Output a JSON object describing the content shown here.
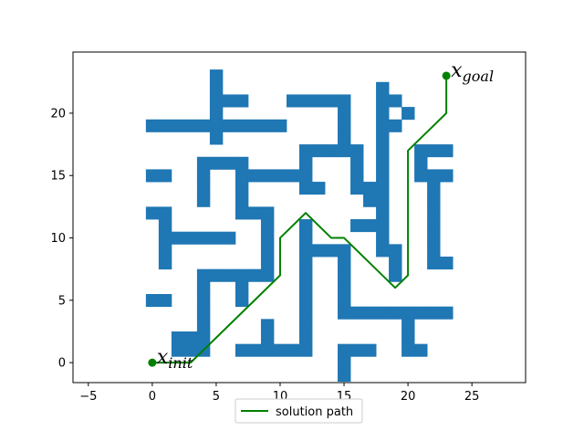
{
  "chart_data": {
    "type": "line",
    "title": "",
    "xlabel": "",
    "ylabel": "",
    "xlim": [
      -6.2,
      29.2
    ],
    "ylim": [
      -1.6,
      24.9
    ],
    "x_ticks": [
      -5,
      0,
      5,
      10,
      15,
      20,
      25
    ],
    "y_ticks": [
      0,
      5,
      10,
      15,
      20
    ],
    "grid": false,
    "legend_position": "bottom-center",
    "obstacle_color": "#1f77b4",
    "path_color": "#008000",
    "obstacle_cells": [
      [
        5,
        23
      ],
      [
        5,
        22
      ],
      [
        5,
        21
      ],
      [
        6,
        21
      ],
      [
        7,
        21
      ],
      [
        11,
        21
      ],
      [
        12,
        21
      ],
      [
        13,
        21
      ],
      [
        14,
        21
      ],
      [
        15,
        21
      ],
      [
        18,
        22
      ],
      [
        5,
        20
      ],
      [
        15,
        20
      ],
      [
        18,
        21
      ],
      [
        19,
        21
      ],
      [
        18,
        20
      ],
      [
        20,
        20
      ],
      [
        0,
        19
      ],
      [
        1,
        19
      ],
      [
        2,
        19
      ],
      [
        3,
        19
      ],
      [
        4,
        19
      ],
      [
        5,
        19
      ],
      [
        6,
        19
      ],
      [
        7,
        19
      ],
      [
        8,
        19
      ],
      [
        9,
        19
      ],
      [
        10,
        19
      ],
      [
        15,
        19
      ],
      [
        18,
        19
      ],
      [
        19,
        19
      ],
      [
        5,
        18
      ],
      [
        15,
        18
      ],
      [
        18,
        18
      ],
      [
        12,
        17
      ],
      [
        13,
        17
      ],
      [
        14,
        17
      ],
      [
        15,
        17
      ],
      [
        16,
        17
      ],
      [
        18,
        17
      ],
      [
        21,
        17
      ],
      [
        22,
        17
      ],
      [
        23,
        17
      ],
      [
        4,
        16
      ],
      [
        5,
        16
      ],
      [
        6,
        16
      ],
      [
        7,
        16
      ],
      [
        12,
        16
      ],
      [
        16,
        16
      ],
      [
        18,
        16
      ],
      [
        21,
        16
      ],
      [
        0,
        15
      ],
      [
        1,
        15
      ],
      [
        4,
        15
      ],
      [
        7,
        15
      ],
      [
        8,
        15
      ],
      [
        9,
        15
      ],
      [
        10,
        15
      ],
      [
        11,
        15
      ],
      [
        12,
        15
      ],
      [
        16,
        15
      ],
      [
        18,
        15
      ],
      [
        21,
        15
      ],
      [
        22,
        15
      ],
      [
        23,
        15
      ],
      [
        4,
        14
      ],
      [
        7,
        14
      ],
      [
        12,
        14
      ],
      [
        13,
        14
      ],
      [
        16,
        14
      ],
      [
        17,
        14
      ],
      [
        18,
        14
      ],
      [
        22,
        14
      ],
      [
        4,
        13
      ],
      [
        7,
        13
      ],
      [
        17,
        13
      ],
      [
        18,
        13
      ],
      [
        22,
        13
      ],
      [
        0,
        12
      ],
      [
        1,
        12
      ],
      [
        7,
        12
      ],
      [
        8,
        12
      ],
      [
        9,
        12
      ],
      [
        18,
        12
      ],
      [
        22,
        12
      ],
      [
        1,
        11
      ],
      [
        9,
        11
      ],
      [
        12,
        11
      ],
      [
        16,
        11
      ],
      [
        17,
        11
      ],
      [
        18,
        11
      ],
      [
        22,
        11
      ],
      [
        1,
        10
      ],
      [
        2,
        10
      ],
      [
        3,
        10
      ],
      [
        4,
        10
      ],
      [
        5,
        10
      ],
      [
        6,
        10
      ],
      [
        9,
        10
      ],
      [
        12,
        10
      ],
      [
        18,
        10
      ],
      [
        22,
        10
      ],
      [
        1,
        9
      ],
      [
        9,
        9
      ],
      [
        12,
        9
      ],
      [
        13,
        9
      ],
      [
        14,
        9
      ],
      [
        15,
        9
      ],
      [
        18,
        9
      ],
      [
        19,
        9
      ],
      [
        22,
        9
      ],
      [
        1,
        8
      ],
      [
        9,
        8
      ],
      [
        12,
        8
      ],
      [
        15,
        8
      ],
      [
        19,
        8
      ],
      [
        22,
        8
      ],
      [
        23,
        8
      ],
      [
        4,
        7
      ],
      [
        5,
        7
      ],
      [
        6,
        7
      ],
      [
        7,
        7
      ],
      [
        8,
        7
      ],
      [
        9,
        7
      ],
      [
        12,
        7
      ],
      [
        15,
        7
      ],
      [
        19,
        7
      ],
      [
        4,
        6
      ],
      [
        7,
        6
      ],
      [
        12,
        6
      ],
      [
        15,
        6
      ],
      [
        0,
        5
      ],
      [
        1,
        5
      ],
      [
        4,
        5
      ],
      [
        7,
        5
      ],
      [
        12,
        5
      ],
      [
        15,
        5
      ],
      [
        4,
        4
      ],
      [
        12,
        4
      ],
      [
        15,
        4
      ],
      [
        16,
        4
      ],
      [
        17,
        4
      ],
      [
        18,
        4
      ],
      [
        19,
        4
      ],
      [
        20,
        4
      ],
      [
        21,
        4
      ],
      [
        22,
        4
      ],
      [
        23,
        4
      ],
      [
        4,
        3
      ],
      [
        9,
        3
      ],
      [
        12,
        3
      ],
      [
        20,
        3
      ],
      [
        2,
        2
      ],
      [
        3,
        2
      ],
      [
        4,
        2
      ],
      [
        9,
        2
      ],
      [
        12,
        2
      ],
      [
        20,
        2
      ],
      [
        2,
        1
      ],
      [
        3,
        1
      ],
      [
        4,
        1
      ],
      [
        7,
        1
      ],
      [
        8,
        1
      ],
      [
        9,
        1
      ],
      [
        10,
        1
      ],
      [
        11,
        1
      ],
      [
        12,
        1
      ],
      [
        15,
        1
      ],
      [
        16,
        1
      ],
      [
        17,
        1
      ],
      [
        20,
        1
      ],
      [
        21,
        1
      ],
      [
        15,
        0
      ],
      [
        15,
        -1
      ]
    ],
    "series": [
      {
        "name": "solution path",
        "x": [
          0,
          3,
          10,
          10,
          12,
          14,
          15,
          19,
          20,
          20,
          23,
          23
        ],
        "y": [
          0,
          0,
          7,
          10,
          12,
          10,
          10,
          6,
          7,
          17,
          20,
          23
        ]
      }
    ],
    "markers": [
      {
        "label_base": "x",
        "label_sub": "init",
        "x": 0,
        "y": 0
      },
      {
        "label_base": "x",
        "label_sub": "goal",
        "x": 23,
        "y": 23
      }
    ]
  }
}
